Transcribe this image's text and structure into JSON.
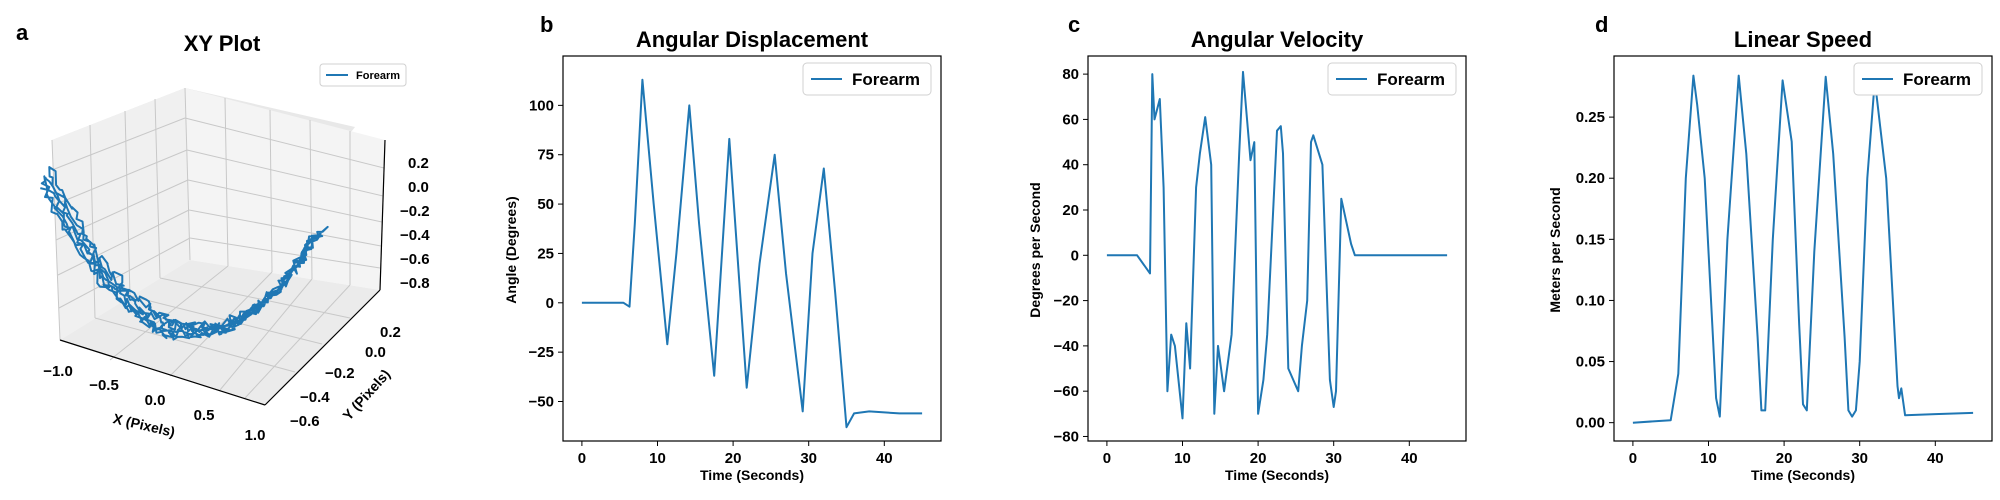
{
  "colors": {
    "series": "#1f77b4",
    "axis": "#000000",
    "pane": "#f2f2f2",
    "grid": "#c8c8c8"
  },
  "chart_data": [
    {
      "panel": "a",
      "type": "line3d",
      "title": "XY Plot",
      "xlabel": "X (Pixels)",
      "ylabel": "Y (Pixels)",
      "zlabel": "",
      "legend": "Forearm",
      "legend_position": "top-right",
      "xlim": [
        -1.0,
        1.0
      ],
      "ylim": [
        -0.7,
        0.3
      ],
      "zlim": [
        -0.9,
        0.3
      ],
      "xticks": [
        "−1.0",
        "−0.5",
        "0.0",
        "0.5",
        "1.0"
      ],
      "yticks": [
        "−0.6",
        "−0.4",
        "−0.2",
        "0.0",
        "0.2"
      ],
      "zticks": [
        "0.2",
        "0.0",
        "−0.2",
        "−0.4",
        "−0.6",
        "−0.8"
      ],
      "shape": "U-shaped swing trajectory of about 5 overlapping loops"
    },
    {
      "panel": "b",
      "type": "line",
      "title": "Angular Displacement",
      "xlabel": "Time (Seconds)",
      "ylabel": "Angle (Degrees)",
      "legend": "Forearm",
      "legend_position": "top-right",
      "xlim": [
        -2.5,
        47.5
      ],
      "ylim": [
        -70,
        125
      ],
      "xticks": [
        0,
        10,
        20,
        30,
        40
      ],
      "yticks": [
        -50,
        -25,
        0,
        25,
        50,
        75,
        100
      ],
      "series": [
        {
          "name": "Forearm",
          "x": [
            0,
            5.5,
            6.3,
            7,
            8,
            9.5,
            11.3,
            12.5,
            14.2,
            15.5,
            17.5,
            19.5,
            21.8,
            23.5,
            25.5,
            27,
            29.2,
            30.5,
            32,
            33.5,
            35,
            36,
            38,
            42,
            45
          ],
          "y": [
            0,
            0,
            -2,
            40,
            113,
            50,
            -21,
            25,
            100,
            40,
            -37,
            83,
            -43,
            20,
            75,
            15,
            -55,
            25,
            68,
            5,
            -63,
            -56,
            -55,
            -56,
            -56
          ]
        }
      ]
    },
    {
      "panel": "c",
      "type": "line",
      "title": "Angular Velocity",
      "xlabel": "Time (Seconds)",
      "ylabel": "Degrees per Second",
      "legend": "Forearm",
      "legend_position": "top-right",
      "xlim": [
        -2.5,
        47.5
      ],
      "ylim": [
        -82,
        88
      ],
      "xticks": [
        0,
        10,
        20,
        30,
        40
      ],
      "yticks": [
        -80,
        -60,
        -40,
        -20,
        0,
        20,
        40,
        60,
        80
      ],
      "series": [
        {
          "name": "Forearm",
          "x": [
            0,
            4,
            5.7,
            6,
            6.3,
            7,
            7.5,
            8,
            8.5,
            9,
            10,
            10.5,
            11,
            11.8,
            12.3,
            13,
            13.8,
            14.2,
            14.7,
            15.5,
            16.5,
            17.5,
            18,
            19,
            19.5,
            20,
            20.7,
            21.2,
            22.5,
            23,
            23.3,
            24,
            25.3,
            25.8,
            26.5,
            27,
            27.3,
            28.5,
            29.5,
            30,
            30.3,
            31,
            32.3,
            32.8,
            33.5,
            34.3,
            35,
            35.3,
            35.7,
            36,
            36.5,
            40,
            45
          ],
          "y": [
            0,
            0,
            -8,
            80,
            60,
            69,
            30,
            -60,
            -35,
            -40,
            -72,
            -30,
            -50,
            30,
            45,
            61,
            40,
            -70,
            -40,
            -60,
            -35,
            45,
            81,
            42,
            50,
            -70,
            -55,
            -35,
            55,
            57,
            45,
            -50,
            -60,
            -40,
            -20,
            50,
            53,
            40,
            -55,
            -67,
            -60,
            25,
            5,
            0,
            0,
            0,
            0,
            0,
            0,
            0,
            0,
            0,
            0
          ]
        }
      ]
    },
    {
      "panel": "d",
      "type": "line",
      "title": "Linear Speed",
      "xlabel": "Time (Seconds)",
      "ylabel": "Meters per Second",
      "legend": "Forearm",
      "legend_position": "top-right",
      "xlim": [
        -2.5,
        47.5
      ],
      "ylim": [
        -0.015,
        0.3
      ],
      "xticks": [
        0,
        10,
        20,
        30,
        40
      ],
      "yticks": [
        "0.00",
        "0.05",
        "0.10",
        "0.15",
        "0.20",
        "0.25"
      ],
      "series": [
        {
          "name": "Forearm",
          "x": [
            0,
            5,
            6,
            7,
            8,
            8.5,
            9.5,
            10.5,
            11,
            11.5,
            12.5,
            14,
            15,
            16.5,
            17,
            17.5,
            18.5,
            19.8,
            21,
            22,
            22.5,
            23,
            24,
            25.5,
            26.5,
            28,
            28.5,
            29,
            29.5,
            30,
            31,
            32,
            33.5,
            35,
            35.2,
            35.5,
            36,
            40,
            45
          ],
          "y": [
            0,
            0.002,
            0.04,
            0.2,
            0.284,
            0.26,
            0.2,
            0.08,
            0.02,
            0.005,
            0.15,
            0.284,
            0.22,
            0.07,
            0.01,
            0.01,
            0.15,
            0.28,
            0.23,
            0.08,
            0.015,
            0.01,
            0.14,
            0.283,
            0.22,
            0.07,
            0.01,
            0.005,
            0.01,
            0.05,
            0.2,
            0.28,
            0.2,
            0.03,
            0.02,
            0.028,
            0.006,
            0.007,
            0.008
          ]
        }
      ]
    }
  ]
}
